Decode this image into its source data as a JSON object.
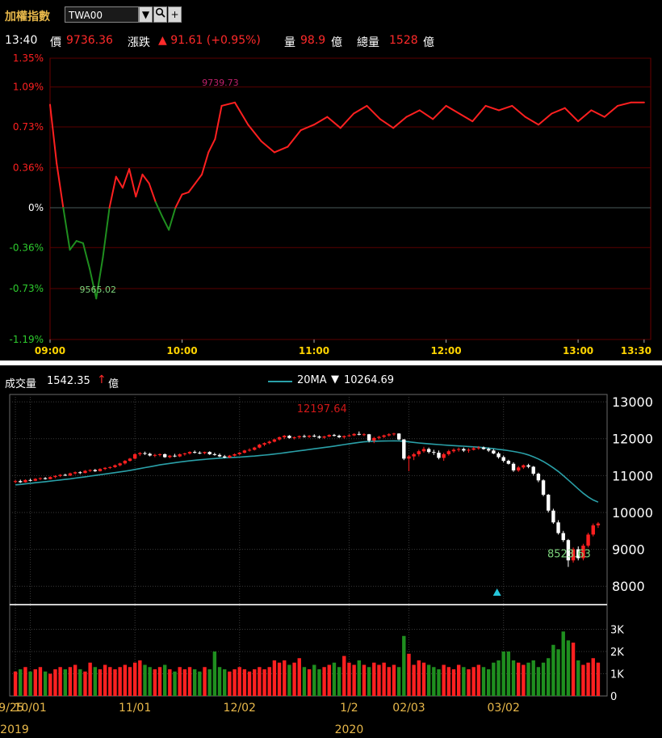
{
  "header": {
    "index_name": "加權指數",
    "symbol": "TWA00",
    "time": "13:40",
    "price_label": "價",
    "price": "9736.36",
    "change_label": "漲跌",
    "change": "▲ 91.61 (+0.95%)",
    "volume_label": "量",
    "volume": "98.9",
    "volume_unit": "億",
    "total_volume_label": "總量",
    "total_volume": "1528",
    "total_volume_unit": "億"
  },
  "icons": {
    "dropdown": "chevron-down-icon",
    "search": "search-icon",
    "add": "plus-icon"
  },
  "colors": {
    "up": "#ff2020",
    "down": "#1f8f1f",
    "ma": "#2aa0a8",
    "grid": "#5a0000",
    "label_low": "#7cd37c",
    "label_high": "#c0206a"
  },
  "chart_data": [
    {
      "type": "line",
      "title": "",
      "x_ticks": [
        "09:00",
        "10:00",
        "11:00",
        "12:00",
        "13:00",
        "13:30"
      ],
      "y_ticks": [
        "1.35%",
        "1.09%",
        "0.73%",
        "0.36%",
        "0%",
        "-0.36%",
        "-0.73%",
        "-1.19%"
      ],
      "ylim": [
        -1.19,
        1.35
      ],
      "reference_price": 9644.75,
      "high_label": "9739.73",
      "low_label": "9565.02",
      "series": [
        {
          "x": [
            "09:00",
            "09:03",
            "09:06",
            "09:09",
            "09:12",
            "09:15",
            "09:18",
            "09:21",
            "09:24",
            "09:27",
            "09:30",
            "09:33",
            "09:36",
            "09:39",
            "09:42",
            "09:45",
            "09:48",
            "09:51",
            "09:54",
            "09:57",
            "10:00",
            "10:03",
            "10:06",
            "10:09",
            "10:12",
            "10:15",
            "10:18",
            "10:24",
            "10:30",
            "10:36",
            "10:42",
            "10:48",
            "10:54",
            "11:00",
            "11:06",
            "11:12",
            "11:18",
            "11:24",
            "11:30",
            "11:36",
            "11:42",
            "11:48",
            "11:54",
            "12:00",
            "12:06",
            "12:12",
            "12:18",
            "12:24",
            "12:30",
            "12:36",
            "12:42",
            "12:48",
            "12:54",
            "13:00",
            "13:06",
            "13:12",
            "13:18",
            "13:24",
            "13:30"
          ],
          "y": [
            0.93,
            0.4,
            0.0,
            -0.38,
            -0.3,
            -0.32,
            -0.55,
            -0.82,
            -0.45,
            0.0,
            0.28,
            0.18,
            0.35,
            0.1,
            0.3,
            0.22,
            0.05,
            -0.08,
            -0.2,
            0.0,
            0.12,
            0.14,
            0.22,
            0.3,
            0.5,
            0.62,
            0.92,
            0.95,
            0.75,
            0.6,
            0.5,
            0.55,
            0.7,
            0.75,
            0.82,
            0.72,
            0.85,
            0.92,
            0.8,
            0.72,
            0.82,
            0.88,
            0.8,
            0.92,
            0.85,
            0.78,
            0.92,
            0.88,
            0.92,
            0.82,
            0.75,
            0.85,
            0.9,
            0.78,
            0.88,
            0.82,
            0.92,
            0.95,
            0.95
          ]
        }
      ]
    },
    {
      "type": "candlestick",
      "volume_title": "成交量",
      "volume_value": "1542.35",
      "volume_unit": "億",
      "ma_label": "20MA",
      "ma_value": "10264.69",
      "high_label": "12197.64",
      "low_label": "8523.63",
      "y_ticks": [
        13000,
        12000,
        11000,
        10000,
        9000,
        8000
      ],
      "ylim": [
        7500,
        13200
      ],
      "x_ticks": [
        "9/25",
        "10/01",
        "11/01",
        "12/02",
        "1/2",
        "02/03",
        "03/02"
      ],
      "years": [
        "2019",
        "2020"
      ],
      "volume_ticks": [
        "3K",
        "2K",
        "1K",
        "0"
      ],
      "candles_ohlc": [
        [
          10830,
          10880,
          10790,
          10850
        ],
        [
          10850,
          10890,
          10800,
          10820
        ],
        [
          10820,
          10900,
          10810,
          10880
        ],
        [
          10880,
          10920,
          10840,
          10860
        ],
        [
          10860,
          10930,
          10850,
          10910
        ],
        [
          10910,
          10950,
          10880,
          10930
        ],
        [
          10930,
          10960,
          10890,
          10905
        ],
        [
          10905,
          10980,
          10900,
          10960
        ],
        [
          10960,
          11010,
          10930,
          10990
        ],
        [
          10990,
          11040,
          10960,
          11020
        ],
        [
          11020,
          11050,
          10990,
          11000
        ],
        [
          11000,
          11080,
          10990,
          11060
        ],
        [
          11060,
          11110,
          11030,
          11090
        ],
        [
          11090,
          11120,
          11040,
          11070
        ],
        [
          11070,
          11150,
          11060,
          11130
        ],
        [
          11130,
          11170,
          11100,
          11150
        ],
        [
          11150,
          11180,
          11100,
          11120
        ],
        [
          11120,
          11200,
          11110,
          11180
        ],
        [
          11180,
          11230,
          11150,
          11210
        ],
        [
          11210,
          11250,
          11180,
          11230
        ],
        [
          11230,
          11300,
          11210,
          11280
        ],
        [
          11280,
          11350,
          11250,
          11330
        ],
        [
          11330,
          11420,
          11300,
          11400
        ],
        [
          11400,
          11480,
          11380,
          11460
        ],
        [
          11460,
          11600,
          11440,
          11580
        ],
        [
          11580,
          11640,
          11530,
          11610
        ],
        [
          11610,
          11650,
          11560,
          11590
        ],
        [
          11590,
          11620,
          11520,
          11545
        ],
        [
          11545,
          11590,
          11500,
          11560
        ],
        [
          11560,
          11600,
          11520,
          11580
        ],
        [
          11580,
          11600,
          11480,
          11500
        ],
        [
          11500,
          11560,
          11470,
          11540
        ],
        [
          11540,
          11590,
          11500,
          11520
        ],
        [
          11520,
          11600,
          11500,
          11580
        ],
        [
          11580,
          11620,
          11540,
          11600
        ],
        [
          11600,
          11660,
          11570,
          11640
        ],
        [
          11640,
          11680,
          11600,
          11620
        ],
        [
          11620,
          11660,
          11580,
          11610
        ],
        [
          11610,
          11650,
          11580,
          11640
        ],
        [
          11640,
          11660,
          11560,
          11580
        ],
        [
          11580,
          11620,
          11540,
          11560
        ],
        [
          11560,
          11600,
          11500,
          11520
        ],
        [
          11520,
          11560,
          11470,
          11490
        ],
        [
          11490,
          11560,
          11470,
          11540
        ],
        [
          11540,
          11600,
          11520,
          11580
        ],
        [
          11580,
          11640,
          11560,
          11620
        ],
        [
          11620,
          11700,
          11600,
          11680
        ],
        [
          11680,
          11740,
          11650,
          11700
        ],
        [
          11700,
          11780,
          11680,
          11760
        ],
        [
          11760,
          11860,
          11740,
          11840
        ],
        [
          11840,
          11900,
          11800,
          11880
        ],
        [
          11880,
          11950,
          11850,
          11920
        ],
        [
          11920,
          12000,
          11900,
          11980
        ],
        [
          11980,
          12060,
          11950,
          12040
        ],
        [
          12040,
          12100,
          11990,
          12080
        ],
        [
          12080,
          12100,
          12000,
          12020
        ],
        [
          12020,
          12060,
          11980,
          12040
        ],
        [
          12040,
          12090,
          12000,
          12070
        ],
        [
          12070,
          12110,
          12030,
          12050
        ],
        [
          12050,
          12100,
          12020,
          12080
        ],
        [
          12080,
          12120,
          12040,
          12060
        ],
        [
          12060,
          12090,
          12000,
          12030
        ],
        [
          12030,
          12080,
          12000,
          12060
        ],
        [
          12060,
          12120,
          12040,
          12100
        ],
        [
          12100,
          12130,
          12060,
          12080
        ],
        [
          12080,
          12110,
          12020,
          12040
        ],
        [
          12040,
          12090,
          12000,
          12070
        ],
        [
          12070,
          12120,
          12050,
          12090
        ],
        [
          12090,
          12150,
          12070,
          12130
        ],
        [
          12130,
          12197,
          12090,
          12110
        ],
        [
          12110,
          12150,
          12070,
          12120
        ],
        [
          12120,
          12130,
          11900,
          11950
        ],
        [
          11950,
          12050,
          11880,
          12020
        ],
        [
          12020,
          12080,
          11980,
          12050
        ],
        [
          12050,
          12110,
          12020,
          12090
        ],
        [
          12090,
          12150,
          12060,
          12120
        ],
        [
          12120,
          12160,
          12080,
          12140
        ],
        [
          12140,
          12150,
          11960,
          11980
        ],
        [
          11980,
          11990,
          11420,
          11460
        ],
        [
          11460,
          11560,
          11120,
          11520
        ],
        [
          11520,
          11620,
          11420,
          11580
        ],
        [
          11580,
          11700,
          11520,
          11660
        ],
        [
          11660,
          11780,
          11620,
          11720
        ],
        [
          11720,
          11760,
          11600,
          11640
        ],
        [
          11640,
          11700,
          11560,
          11620
        ],
        [
          11620,
          11680,
          11440,
          11480
        ],
        [
          11480,
          11620,
          11400,
          11580
        ],
        [
          11580,
          11700,
          11540,
          11660
        ],
        [
          11660,
          11740,
          11620,
          11700
        ],
        [
          11700,
          11760,
          11650,
          11720
        ],
        [
          11720,
          11760,
          11640,
          11680
        ],
        [
          11680,
          11740,
          11620,
          11700
        ],
        [
          11700,
          11780,
          11680,
          11740
        ],
        [
          11740,
          11800,
          11700,
          11760
        ],
        [
          11760,
          11790,
          11700,
          11720
        ],
        [
          11720,
          11760,
          11640,
          11680
        ],
        [
          11680,
          11720,
          11580,
          11600
        ],
        [
          11600,
          11640,
          11460,
          11500
        ],
        [
          11500,
          11540,
          11360,
          11400
        ],
        [
          11400,
          11430,
          11300,
          11320
        ],
        [
          11320,
          11360,
          11100,
          11140
        ],
        [
          11140,
          11260,
          11100,
          11220
        ],
        [
          11220,
          11300,
          11180,
          11280
        ],
        [
          11280,
          11320,
          11200,
          11240
        ],
        [
          11240,
          11260,
          11000,
          11050
        ],
        [
          11050,
          11080,
          10820,
          10870
        ],
        [
          10870,
          10900,
          10440,
          10480
        ],
        [
          10480,
          10500,
          10000,
          10050
        ],
        [
          10050,
          10100,
          9690,
          9730
        ],
        [
          9730,
          9790,
          9400,
          9440
        ],
        [
          9440,
          9500,
          9200,
          9250
        ],
        [
          9250,
          9280,
          8523,
          8700
        ],
        [
          8700,
          9050,
          8640,
          9000
        ],
        [
          9000,
          9080,
          8700,
          8760
        ],
        [
          8760,
          9150,
          8700,
          9100
        ],
        [
          9100,
          9450,
          9050,
          9400
        ],
        [
          9400,
          9700,
          9350,
          9650
        ],
        [
          9650,
          9740,
          9580,
          9700
        ]
      ],
      "ma20": [
        10750,
        10760,
        10775,
        10790,
        10805,
        10820,
        10835,
        10850,
        10865,
        10880,
        10895,
        10912,
        10930,
        10948,
        10966,
        10985,
        11004,
        11023,
        11042,
        11061,
        11080,
        11100,
        11120,
        11142,
        11165,
        11190,
        11215,
        11240,
        11265,
        11290,
        11310,
        11330,
        11350,
        11368,
        11385,
        11400,
        11415,
        11428,
        11440,
        11452,
        11462,
        11472,
        11480,
        11488,
        11495,
        11502,
        11510,
        11520,
        11530,
        11542,
        11555,
        11570,
        11585,
        11600,
        11618,
        11636,
        11654,
        11672,
        11690,
        11708,
        11726,
        11744,
        11762,
        11780,
        11800,
        11820,
        11840,
        11860,
        11880,
        11900,
        11915,
        11925,
        11930,
        11935,
        11938,
        11940,
        11942,
        11940,
        11930,
        11915,
        11900,
        11885,
        11872,
        11860,
        11850,
        11840,
        11830,
        11820,
        11812,
        11804,
        11796,
        11788,
        11780,
        11770,
        11758,
        11745,
        11730,
        11712,
        11695,
        11676,
        11655,
        11630,
        11600,
        11560,
        11510,
        11450,
        11380,
        11300,
        11210,
        11110,
        11000,
        10880,
        10760,
        10640,
        10520,
        10420,
        10340,
        10280
      ],
      "volume_k": [
        1.1,
        1.2,
        1.3,
        1.1,
        1.2,
        1.3,
        1.1,
        1.0,
        1.2,
        1.3,
        1.2,
        1.3,
        1.4,
        1.2,
        1.1,
        1.5,
        1.3,
        1.2,
        1.4,
        1.3,
        1.2,
        1.3,
        1.4,
        1.3,
        1.5,
        1.6,
        1.4,
        1.3,
        1.2,
        1.3,
        1.4,
        1.2,
        1.1,
        1.3,
        1.2,
        1.3,
        1.2,
        1.1,
        1.3,
        1.2,
        2.0,
        1.3,
        1.2,
        1.1,
        1.2,
        1.3,
        1.2,
        1.1,
        1.2,
        1.3,
        1.2,
        1.3,
        1.6,
        1.5,
        1.6,
        1.4,
        1.5,
        1.7,
        1.3,
        1.2,
        1.4,
        1.2,
        1.3,
        1.4,
        1.5,
        1.3,
        1.8,
        1.5,
        1.4,
        1.6,
        1.4,
        1.3,
        1.5,
        1.4,
        1.5,
        1.3,
        1.4,
        1.3,
        2.7,
        1.9,
        1.4,
        1.6,
        1.5,
        1.4,
        1.3,
        1.2,
        1.4,
        1.3,
        1.2,
        1.4,
        1.3,
        1.2,
        1.3,
        1.4,
        1.3,
        1.2,
        1.5,
        1.6,
        2.0,
        2.0,
        1.6,
        1.5,
        1.4,
        1.5,
        1.6,
        1.3,
        1.5,
        1.7,
        2.3,
        2.1,
        2.9,
        2.5,
        2.4,
        1.6,
        1.4,
        1.5,
        1.7,
        1.5
      ]
    }
  ]
}
